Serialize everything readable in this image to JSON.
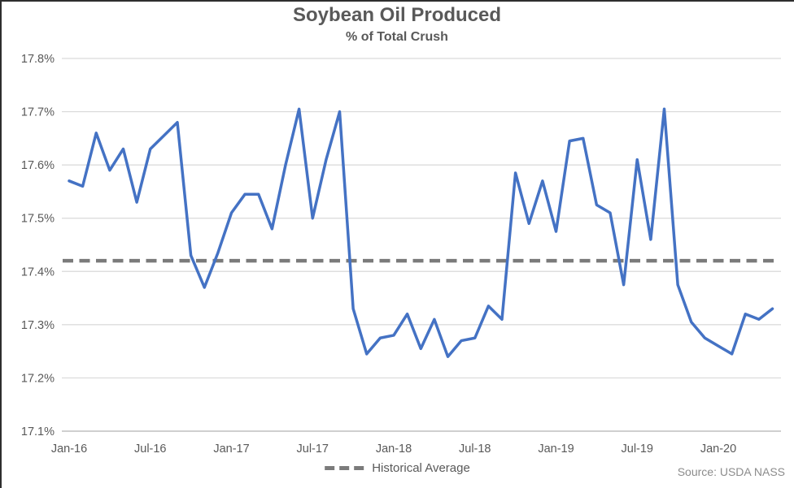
{
  "title": "Soybean Oil Produced",
  "subtitle": "% of Total Crush",
  "legend": {
    "label": "Historical Average"
  },
  "source": "Source: USDA NASS",
  "colors": {
    "line": "#4472C4",
    "average_line": "#7B7B7B",
    "grid": "#D9D9D9",
    "axis": "#BFBFBF",
    "text": "#595959",
    "source_text": "#8C8C8C"
  },
  "chart_data": {
    "type": "line",
    "title": "Soybean Oil Produced",
    "subtitle": "% of Total Crush",
    "x": [
      "Jan-16",
      "Feb-16",
      "Mar-16",
      "Apr-16",
      "May-16",
      "Jun-16",
      "Jul-16",
      "Aug-16",
      "Sep-16",
      "Oct-16",
      "Nov-16",
      "Dec-16",
      "Jan-17",
      "Feb-17",
      "Mar-17",
      "Apr-17",
      "May-17",
      "Jun-17",
      "Jul-17",
      "Aug-17",
      "Sep-17",
      "Oct-17",
      "Nov-17",
      "Dec-17",
      "Jan-18",
      "Feb-18",
      "Mar-18",
      "Apr-18",
      "May-18",
      "Jun-18",
      "Jul-18",
      "Aug-18",
      "Sep-18",
      "Oct-18",
      "Nov-18",
      "Dec-18",
      "Jan-19",
      "Feb-19",
      "Mar-19",
      "Apr-19",
      "May-19",
      "Jun-19",
      "Jul-19",
      "Aug-19",
      "Sep-19",
      "Oct-19",
      "Nov-19",
      "Dec-19",
      "Jan-20",
      "Feb-20",
      "Mar-20",
      "Apr-20",
      "May-20"
    ],
    "series": [
      {
        "name": "Soybean oil produced, % of total crush",
        "values": [
          17.57,
          17.56,
          17.66,
          17.59,
          17.63,
          17.53,
          17.63,
          17.655,
          17.68,
          17.43,
          17.37,
          17.435,
          17.51,
          17.545,
          17.545,
          17.48,
          17.6,
          17.705,
          17.5,
          17.61,
          17.7,
          17.33,
          17.245,
          17.275,
          17.28,
          17.32,
          17.255,
          17.31,
          17.24,
          17.27,
          17.275,
          17.335,
          17.31,
          17.585,
          17.49,
          17.57,
          17.475,
          17.645,
          17.65,
          17.525,
          17.51,
          17.375,
          17.61,
          17.46,
          17.705,
          17.375,
          17.305,
          17.275,
          17.26,
          17.245,
          17.32,
          17.31,
          17.33
        ]
      }
    ],
    "average": {
      "label": "Historical Average",
      "value": 17.42,
      "style": "dashed"
    },
    "ylim": [
      17.1,
      17.8
    ],
    "ytick_step": 0.1,
    "yticks": [
      "17.8%",
      "17.7%",
      "17.6%",
      "17.5%",
      "17.4%",
      "17.3%",
      "17.2%",
      "17.1%"
    ],
    "xticks": [
      {
        "index": 0,
        "label": "Jan-16"
      },
      {
        "index": 6,
        "label": "Jul-16"
      },
      {
        "index": 12,
        "label": "Jan-17"
      },
      {
        "index": 18,
        "label": "Jul-17"
      },
      {
        "index": 24,
        "label": "Jan-18"
      },
      {
        "index": 30,
        "label": "Jul-18"
      },
      {
        "index": 36,
        "label": "Jan-19"
      },
      {
        "index": 42,
        "label": "Jul-19"
      },
      {
        "index": 48,
        "label": "Jan-20"
      }
    ],
    "grid": "horizontal",
    "legend_position": "bottom-center",
    "source": "Source: USDA NASS"
  }
}
